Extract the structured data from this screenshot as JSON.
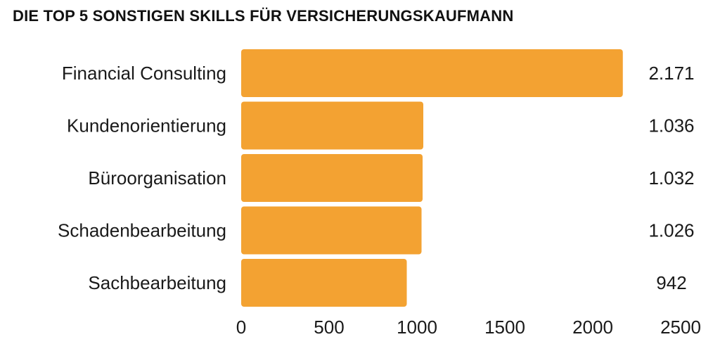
{
  "chart_data": {
    "type": "bar",
    "orientation": "horizontal",
    "title": "DIE TOP 5 SONSTIGEN SKILLS FÜR VERSICHERUNGSKAUFMANN",
    "xlabel": "",
    "ylabel": "",
    "categories": [
      "Financial Consulting",
      "Kundenorientierung",
      "Büroorganisation",
      "Schadenbearbeitung",
      "Sachbearbeitung"
    ],
    "values": [
      2171,
      1036,
      1032,
      1026,
      942
    ],
    "value_labels": [
      "2.171",
      "1.036",
      "1.032",
      "1.026",
      "942"
    ],
    "xlim": [
      0,
      2500
    ],
    "xticks": [
      0,
      500,
      1000,
      1500,
      2000,
      2500
    ],
    "xtick_labels": [
      "0",
      "500",
      "1000",
      "1500",
      "2000",
      "2500"
    ],
    "grid": false,
    "legend": "none",
    "bar_color": "#F3A232"
  }
}
